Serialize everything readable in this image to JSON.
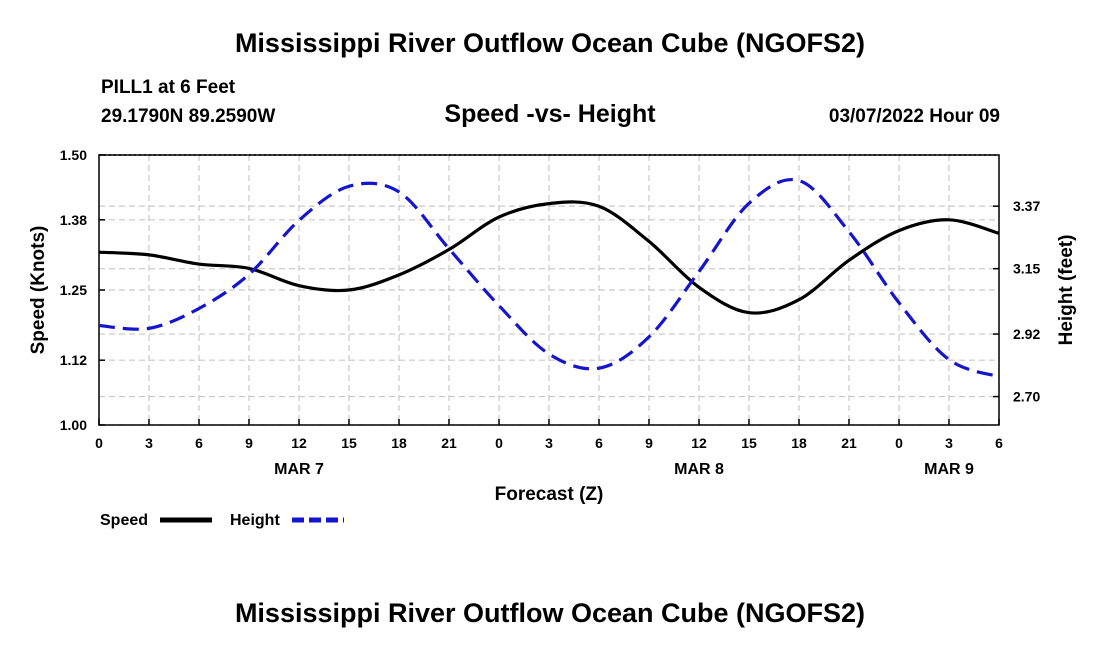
{
  "chart_data": {
    "type": "line",
    "title": "Mississippi River Outflow Ocean Cube (NGOFS2)",
    "footer_title": "Mississippi River Outflow Ocean Cube (NGOFS2)",
    "station": "PILL1 at 6 Feet",
    "location": "29.1790N  89.2590W",
    "subtitle": "Speed -vs- Height",
    "timestamp": "03/07/2022 Hour 09",
    "xlabel": "Forecast (Z)",
    "ylabel_left": "Speed (Knots)",
    "ylabel_right": "Height (feet)",
    "x_ticks": [
      "0",
      "3",
      "6",
      "9",
      "12",
      "15",
      "18",
      "21",
      "0",
      "3",
      "6",
      "9",
      "12",
      "15",
      "18",
      "21",
      "0",
      "3",
      "6"
    ],
    "x_range_hours": [
      0,
      54
    ],
    "day_labels": [
      {
        "label": "MAR 7",
        "hour": 12
      },
      {
        "label": "MAR 8",
        "hour": 36
      },
      {
        "label": "MAR 9",
        "hour": 51
      }
    ],
    "left_axis": {
      "ylim": [
        1.0,
        1.5
      ],
      "ticks": [
        "1.50",
        "1.38",
        "1.25",
        "1.12",
        "1.00"
      ],
      "tick_values": [
        1.5,
        1.38,
        1.25,
        1.12,
        1.0
      ]
    },
    "right_axis": {
      "ylim": [
        2.6,
        3.55
      ],
      "ticks": [
        "3.37",
        "3.15",
        "2.92",
        "2.70"
      ],
      "tick_values": [
        3.37,
        3.15,
        2.92,
        2.7
      ]
    },
    "series": [
      {
        "name": "Speed",
        "axis": "left",
        "color": "#000000",
        "style": "solid",
        "x": [
          0,
          3,
          6,
          9,
          12,
          15,
          18,
          21,
          24,
          27,
          30,
          33,
          36,
          39,
          42,
          45,
          48,
          51,
          54
        ],
        "values": [
          1.32,
          1.315,
          1.298,
          1.29,
          1.258,
          1.25,
          1.278,
          1.325,
          1.385,
          1.41,
          1.405,
          1.34,
          1.255,
          1.208,
          1.232,
          1.305,
          1.36,
          1.38,
          1.355
        ]
      },
      {
        "name": "Height",
        "axis": "right",
        "color": "#1515cc",
        "style": "dashed",
        "x": [
          0,
          3,
          6,
          9,
          12,
          15,
          18,
          21,
          24,
          27,
          30,
          33,
          36,
          39,
          42,
          45,
          48,
          51,
          54
        ],
        "values": [
          2.95,
          2.94,
          3.01,
          3.13,
          3.32,
          3.44,
          3.42,
          3.22,
          3.02,
          2.85,
          2.8,
          2.91,
          3.14,
          3.38,
          3.46,
          3.28,
          3.03,
          2.83,
          2.77
        ]
      }
    ],
    "legend": [
      {
        "label": "Speed",
        "color": "#000000",
        "style": "solid"
      },
      {
        "label": "Height",
        "color": "#1515cc",
        "style": "dashed"
      }
    ],
    "grid": true
  }
}
